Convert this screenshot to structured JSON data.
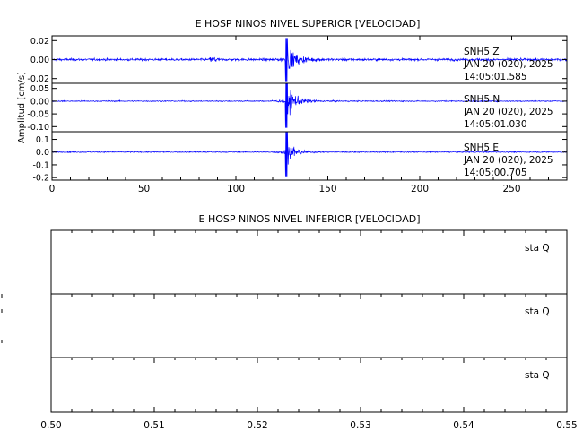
{
  "figure": {
    "top_title": "E HOSP NINOS NIVEL SUPERIOR [VELOCIDAD]",
    "bottom_title": "E HOSP NINOS NIVEL INFERIOR [VELOCIDAD]",
    "ylabel": "Amplitud [cm/s]"
  },
  "colors": {
    "trace": "#0000ff",
    "axis": "#000000",
    "background": "#ffffff"
  },
  "chart_data": [
    {
      "type": "line",
      "title": "E HOSP NINOS NIVEL SUPERIOR [VELOCIDAD]",
      "xlabel": "",
      "ylabel": "Amplitud [cm/s]",
      "xlim": [
        0,
        280
      ],
      "xticks": [
        0,
        50,
        100,
        150,
        200,
        250
      ],
      "grid": false,
      "panels": [
        {
          "station": "SNH5",
          "component": "Z",
          "date": "JAN 20 (020), 2025",
          "time": "14:05:01.585",
          "ylim": [
            -0.025,
            0.025
          ],
          "yticks": [
            "0.02",
            "0.00",
            "-0.02"
          ],
          "ytick_values": [
            0.02,
            0.0,
            -0.02
          ],
          "noise": 0.0022,
          "event_t": 127.5,
          "peak": 0.024,
          "decay": 5.5,
          "small_event": {
            "t": 88,
            "amp": 0.006
          }
        },
        {
          "station": "SNH5",
          "component": "N",
          "date": "JAN 20 (020), 2025",
          "time": "14:05:01.030",
          "ylim": [
            -0.12,
            0.07
          ],
          "yticks": [
            "0.05",
            "0.00",
            "-0.05",
            "-0.10"
          ],
          "ytick_values": [
            0.05,
            0.0,
            -0.05,
            -0.1
          ],
          "noise": 0.004,
          "event_t": 127.5,
          "peak": 0.11,
          "decay": 5.0,
          "small_event": null
        },
        {
          "station": "SNH5",
          "component": "E",
          "date": "JAN 20 (020), 2025",
          "time": "14:05:00.705",
          "ylim": [
            -0.22,
            0.16
          ],
          "yticks": [
            "0.1",
            "0.0",
            "-0.1",
            "-0.2"
          ],
          "ytick_values": [
            0.1,
            0.0,
            -0.1,
            -0.2
          ],
          "noise": 0.007,
          "event_t": 127.5,
          "peak": 0.2,
          "decay": 3.8,
          "small_event": null
        }
      ]
    },
    {
      "type": "line",
      "title": "E HOSP NINOS NIVEL INFERIOR [VELOCIDAD]",
      "xlabel": "",
      "ylabel": "",
      "xlim": [
        0.5,
        0.55
      ],
      "xticks": [
        "0.50",
        "0.51",
        "0.52",
        "0.53",
        "0.54",
        "0.55"
      ],
      "xtick_values": [
        0.5,
        0.51,
        0.52,
        0.53,
        0.54,
        0.55
      ],
      "grid": false,
      "panels": [
        {
          "label": "sta  Q",
          "values": []
        },
        {
          "label": "sta  Q",
          "values": []
        },
        {
          "label": "sta  Q",
          "values": []
        }
      ]
    }
  ]
}
